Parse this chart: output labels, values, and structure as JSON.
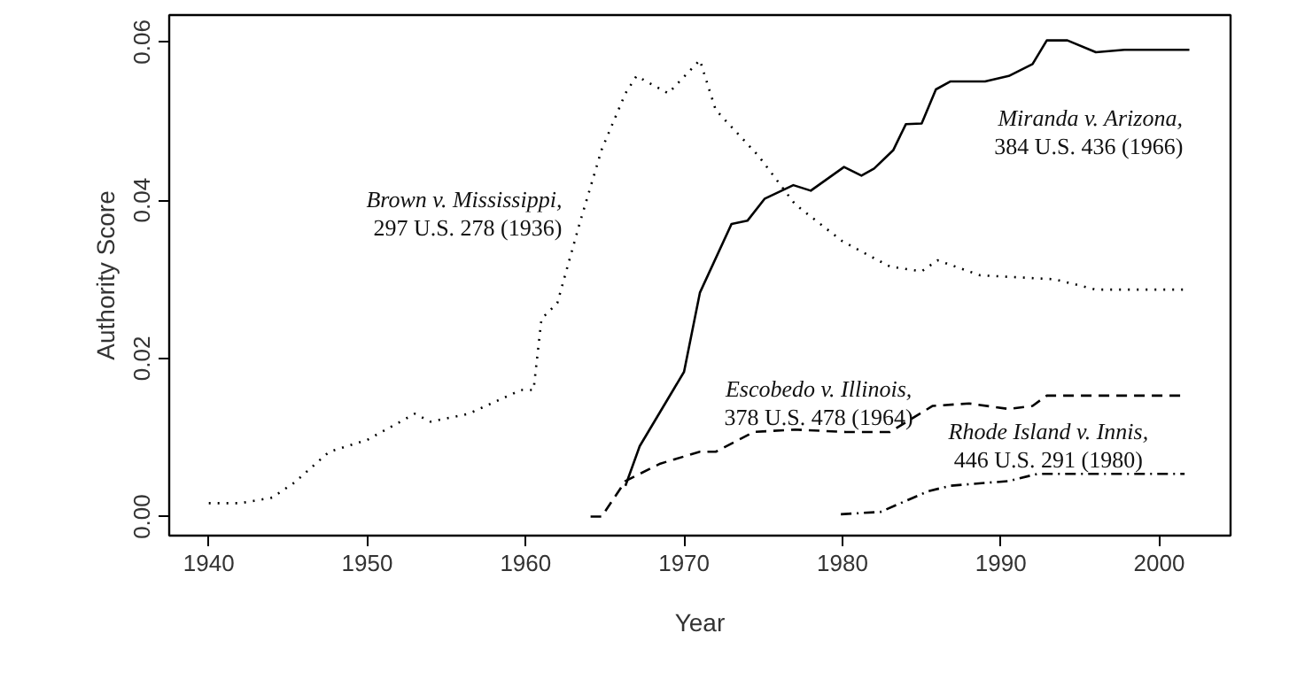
{
  "chart_data": {
    "type": "line",
    "xlabel": "Year",
    "ylabel": "Authority Score",
    "xlim": [
      1937.5,
      2004.5
    ],
    "ylim": [
      -0.0024,
      0.0634
    ],
    "xticks": [
      1940,
      1950,
      1960,
      1970,
      1980,
      1990,
      2000
    ],
    "yticks": [
      {
        "value": 0,
        "label": "0.00"
      },
      {
        "value": 0.02,
        "label": "0.02"
      },
      {
        "value": 0.04,
        "label": "0.04"
      },
      {
        "value": 0.06,
        "label": "0.06"
      }
    ],
    "grid": false,
    "marker": "none",
    "series": [
      {
        "name": "Brown v. Mississippi,\n297 U.S. 278 (1936)",
        "color": "#000000",
        "line_style": "dotted",
        "x": [
          1940,
          1942,
          1944,
          1945.4,
          1947.6,
          1950,
          1953,
          1954,
          1956.4,
          1959.7,
          1960.5,
          1961,
          1962,
          1963.4,
          1964.8,
          1966.3,
          1967,
          1969,
          1971,
          1972,
          1974.7,
          1977,
          1980,
          1983,
          1985,
          1986,
          1988.7,
          1993.4,
          1996,
          2001.7
        ],
        "values": [
          0.0017,
          0.0017,
          0.0024,
          0.0043,
          0.0082,
          0.0097,
          0.013,
          0.012,
          0.013,
          0.016,
          0.016,
          0.025,
          0.027,
          0.037,
          0.0464,
          0.0535,
          0.0557,
          0.0535,
          0.0577,
          0.0514,
          0.0456,
          0.0395,
          0.0348,
          0.0316,
          0.031,
          0.0324,
          0.0305,
          0.03,
          0.0287,
          0.0287
        ]
      },
      {
        "name": "Miranda v. Arizona,\n384 U.S. 436 (1966)",
        "color": "#000000",
        "line_style": "solid",
        "x": [
          1966.3,
          1967.2,
          1970,
          1971,
          1973,
          1974,
          1975.1,
          1976.9,
          1978,
          1980.1,
          1981.2,
          1982,
          1983.2,
          1984,
          1985,
          1985.9,
          1986.8,
          1989,
          1990.5,
          1992,
          1992.9,
          1994.2,
          1996,
          1997.8,
          2001.9
        ],
        "values": [
          0.0039,
          0.0089,
          0.0183,
          0.0283,
          0.037,
          0.0374,
          0.0402,
          0.0419,
          0.0412,
          0.0442,
          0.0431,
          0.044,
          0.0463,
          0.0496,
          0.0497,
          0.054,
          0.055,
          0.055,
          0.0557,
          0.0572,
          0.0602,
          0.0602,
          0.0587,
          0.059,
          0.059
        ]
      },
      {
        "name": "Escobedo v. Illinois,\n378 U.S. 478 (1964)",
        "color": "#000000",
        "line_style": "dashed",
        "x": [
          1964.1,
          1964.8,
          1966.3,
          1968.5,
          1971,
          1972,
          1974.4,
          1977,
          1980.2,
          1983,
          1985.7,
          1988,
          1990.5,
          1992,
          1992.9,
          2001.6
        ],
        "values": [
          0,
          0,
          0.0045,
          0.0067,
          0.0082,
          0.0082,
          0.0107,
          0.011,
          0.0107,
          0.0107,
          0.014,
          0.0143,
          0.0136,
          0.014,
          0.0153,
          0.0153
        ]
      },
      {
        "name": "Rhode Island v. Innis,\n446 U.S. 291 (1980)",
        "color": "#000000",
        "line_style": "dashdot",
        "x": [
          1979.9,
          1982.4,
          1985.4,
          1986.8,
          1990.5,
          1992.3,
          2001.6
        ],
        "values": [
          0.0003,
          0.0006,
          0.0032,
          0.0039,
          0.0045,
          0.0054,
          0.0054
        ]
      }
    ]
  }
}
